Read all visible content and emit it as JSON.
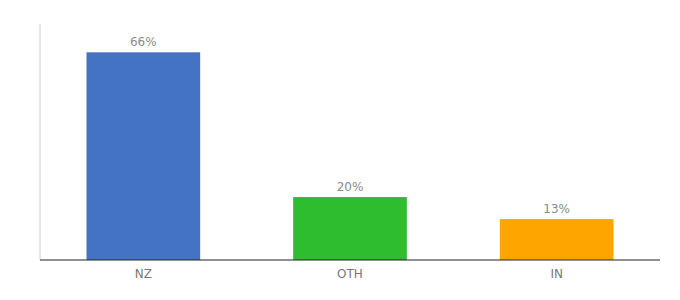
{
  "chart_data": {
    "type": "bar",
    "categories": [
      "NZ",
      "OTH",
      "IN"
    ],
    "values": [
      66,
      20,
      13
    ],
    "value_labels": [
      "66%",
      "20%",
      "13%"
    ],
    "colors": [
      "#4472c4",
      "#2ebd2e",
      "#ffa500"
    ],
    "ylim": [
      0,
      75
    ],
    "yticks": [],
    "tick_labels": "x",
    "data_labels": true
  }
}
